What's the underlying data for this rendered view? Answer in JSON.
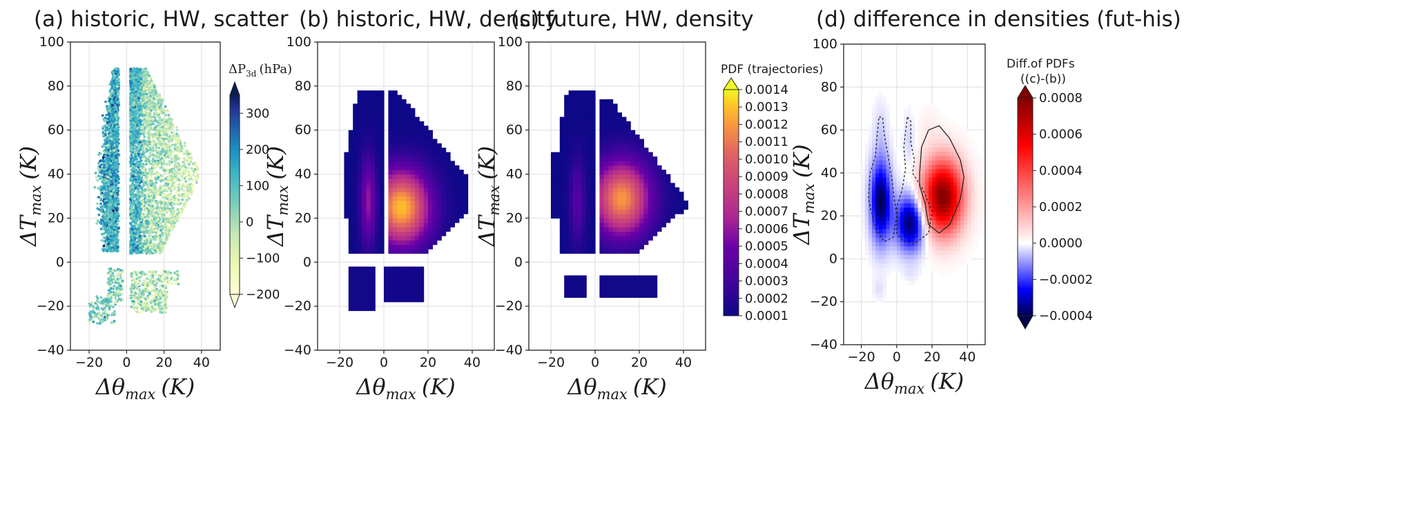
{
  "panels": [
    {
      "id": "a",
      "title": "(a) historic, HW, scatter",
      "kind": "scatter"
    },
    {
      "id": "b",
      "title": "(b) historic, HW, density",
      "kind": "density-hist"
    },
    {
      "id": "c",
      "title": "(c) future, HW, density",
      "kind": "density-fut"
    },
    {
      "id": "d",
      "title": "(d) difference in densities (fut-his)",
      "kind": "difference"
    }
  ],
  "axes": {
    "xlabel_main": "Δθ",
    "xlabel_sub": "max",
    "xlabel_unit": "(K)",
    "ylabel_main": "ΔT",
    "ylabel_sub": "max",
    "ylabel_unit": "(K)",
    "xticks": [
      "−20",
      "0",
      "20",
      "40"
    ],
    "yticks": [
      "100",
      "80",
      "60",
      "40",
      "20",
      "0",
      "−20",
      "−40"
    ]
  },
  "colorbars": {
    "scatter": {
      "label_main": "ΔP",
      "label_sub": "3d",
      "label_unit": "(hPa)",
      "ticks": [
        "300",
        "200",
        "100",
        "0",
        "−100",
        "−200"
      ],
      "colormap": "YlGnBu"
    },
    "density": {
      "label": "PDF (trajectories)",
      "ticks": [
        "0.0014",
        "0.0013",
        "0.0012",
        "0.0011",
        "0.0010",
        "0.0009",
        "0.0008",
        "0.0007",
        "0.0006",
        "0.0005",
        "0.0004",
        "0.0003",
        "0.0002",
        "0.0001"
      ],
      "colormap": "plasma"
    },
    "difference": {
      "label_line1": "Diff.of PDFs",
      "label_line2": "((c)-(b))",
      "ticks": [
        "0.0008",
        "0.0006",
        "0.0004",
        "0.0002",
        "0.0000",
        "−0.0002",
        "−0.0004"
      ],
      "colormap": "seismic"
    }
  },
  "chart_data": [
    {
      "type": "scatter",
      "title": "(a) historic, HW, scatter",
      "xlim": [
        -30,
        50
      ],
      "ylim": [
        -40,
        100
      ],
      "x_ticks": [
        -20,
        0,
        20,
        40
      ],
      "y_ticks": [
        -40,
        -20,
        0,
        20,
        40,
        60,
        80,
        100
      ],
      "grid": true,
      "colorbar": {
        "label": "ΔP3d (hPa)",
        "range": [
          -200,
          350
        ],
        "ticks": [
          -200,
          -100,
          0,
          100,
          200,
          300
        ]
      },
      "clusters": [
        {
          "name": "left lobe",
          "x_range": [
            -28,
            -2
          ],
          "y_range": [
            5,
            88
          ],
          "color_trend": "high ΔP (dark blue)"
        },
        {
          "name": "right lobe",
          "x_range": [
            2,
            40
          ],
          "y_range": [
            4,
            88
          ],
          "color_trend": "low ΔP (yellow-green)"
        },
        {
          "name": "lower left",
          "x_range": [
            -20,
            -2
          ],
          "y_range": [
            -28,
            -3
          ]
        },
        {
          "name": "lower right",
          "x_range": [
            2,
            30
          ],
          "y_range": [
            -23,
            -4
          ]
        }
      ]
    },
    {
      "type": "heatmap",
      "title": "(b) historic, HW, density",
      "xlim": [
        -30,
        50
      ],
      "ylim": [
        -40,
        100
      ],
      "colorbar": {
        "label": "PDF (trajectories)",
        "range": [
          0.0001,
          0.0014
        ]
      },
      "peaks": [
        {
          "x": 8,
          "y": 25,
          "value": 0.0013
        },
        {
          "x": -7,
          "y": 28,
          "value": 0.0006
        }
      ]
    },
    {
      "type": "heatmap",
      "title": "(c) future, HW, density",
      "xlim": [
        -30,
        50
      ],
      "ylim": [
        -40,
        100
      ],
      "colorbar": {
        "label": "PDF (trajectories)",
        "range": [
          0.0001,
          0.0014
        ]
      },
      "peaks": [
        {
          "x": 12,
          "y": 29,
          "value": 0.0012
        },
        {
          "x": -8,
          "y": 28,
          "value": 0.0004
        }
      ]
    },
    {
      "type": "heatmap",
      "title": "(d) difference in densities (fut-his)",
      "xlim": [
        -30,
        50
      ],
      "ylim": [
        -40,
        100
      ],
      "colorbar": {
        "label": "Diff.of PDFs ((c)-(b))",
        "range": [
          -0.0004,
          0.0008
        ]
      },
      "extrema": [
        {
          "x": 26,
          "y": 29,
          "value": 0.0008,
          "sign": "positive"
        },
        {
          "x": -9,
          "y": 27,
          "value": -0.0004,
          "sign": "negative"
        },
        {
          "x": 8,
          "y": 17,
          "value": -0.0004,
          "sign": "negative"
        }
      ]
    }
  ]
}
